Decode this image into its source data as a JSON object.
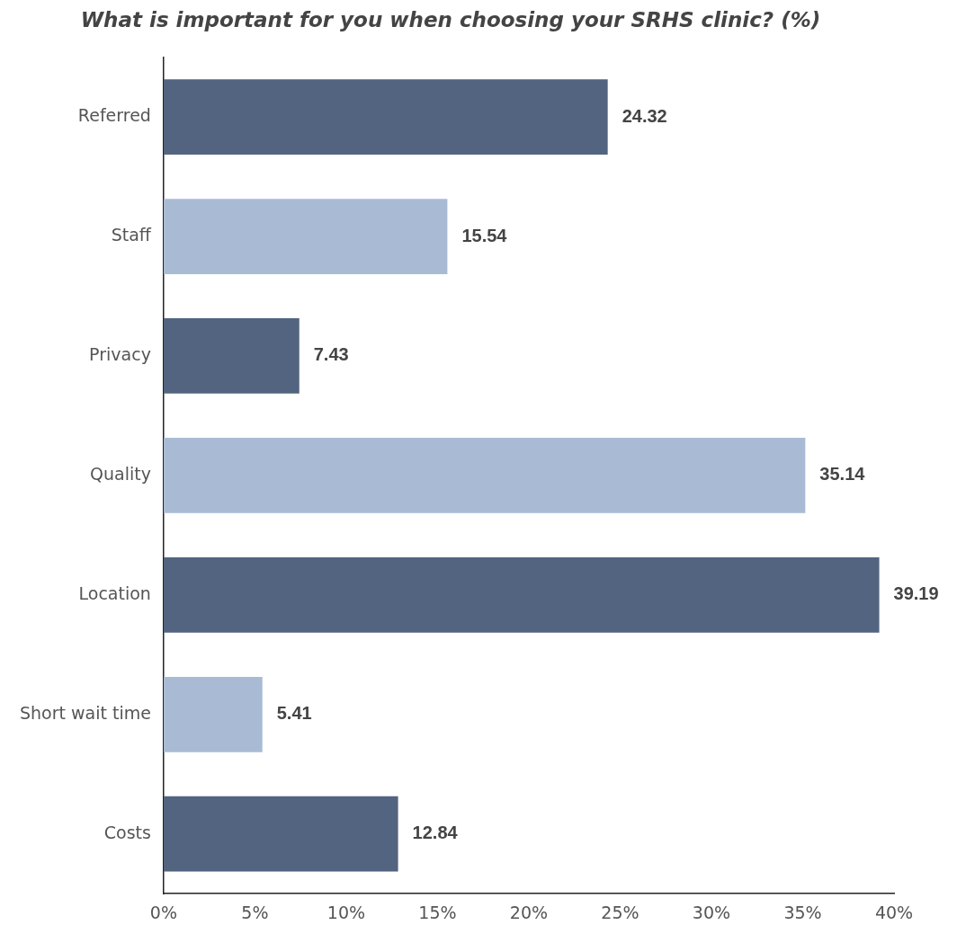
{
  "chart_data": {
    "type": "bar",
    "orientation": "horizontal",
    "title": "What is important for you when choosing your SRHS clinic? (%)",
    "categories": [
      "Referred",
      "Staff",
      "Privacy",
      "Quality",
      "Location",
      "Short wait time",
      "Costs"
    ],
    "values": [
      24.32,
      15.54,
      7.43,
      35.14,
      39.19,
      5.41,
      12.84
    ],
    "colors": [
      "#52647f",
      "#a9bbd4",
      "#52647f",
      "#a9bbd4",
      "#52647f",
      "#a9bbd4",
      "#52647f"
    ],
    "xlim": [
      0,
      40
    ],
    "xticks": [
      {
        "value": 0,
        "label": "0%"
      },
      {
        "value": 5,
        "label": "5%"
      },
      {
        "value": 10,
        "label": "10%"
      },
      {
        "value": 15,
        "label": "15%"
      },
      {
        "value": 20,
        "label": "20%"
      },
      {
        "value": 25,
        "label": "25%"
      },
      {
        "value": 30,
        "label": "30%"
      },
      {
        "value": 35,
        "label": "35%"
      },
      {
        "value": 40,
        "label": "40%"
      }
    ],
    "grid": false,
    "legend": false,
    "data_labels": true
  }
}
